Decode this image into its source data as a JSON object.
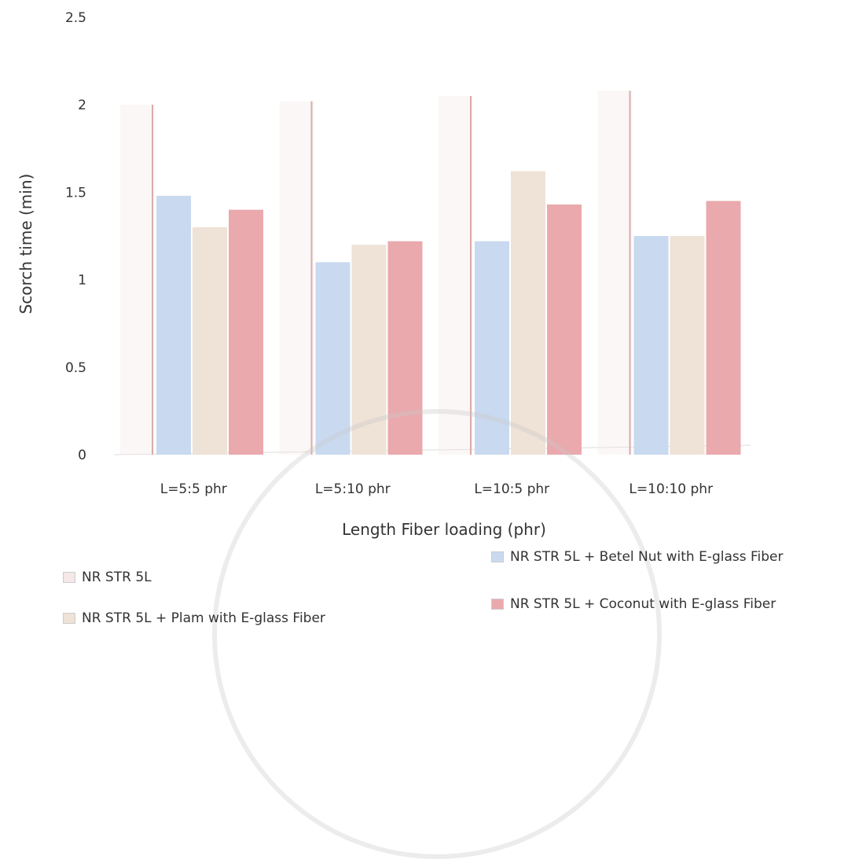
{
  "chart_data": {
    "type": "bar",
    "title": "",
    "xlabel": "Length Fiber loading (phr)",
    "ylabel": "Scorch time (min)",
    "ylim": [
      0,
      2.5
    ],
    "yticks": [
      "0",
      "0.5",
      "1",
      "1.5",
      "2",
      "2.5"
    ],
    "categories": [
      "L=5:5 phr",
      "L=5:10 phr",
      "L=10:5 phr",
      "L=10:10 phr"
    ],
    "series": [
      {
        "name": "NR STR 5L",
        "values": [
          2.0,
          2.02,
          2.05,
          2.08
        ],
        "color": "#f6e8e8"
      },
      {
        "name": "NR STR 5L + Betel Nut with E-glass Fiber",
        "values": [
          1.48,
          1.1,
          1.22,
          1.25
        ],
        "color": "#c9d9ef"
      },
      {
        "name": "NR STR 5L + Plam with E-glass Fiber",
        "values": [
          1.3,
          1.2,
          1.62,
          1.25
        ],
        "color": "#efe2d6"
      },
      {
        "name": "NR STR 5L + Coconut with E-glass Fiber",
        "values": [
          1.4,
          1.22,
          1.43,
          1.45
        ],
        "color": "#eaa9ad"
      }
    ],
    "grid": false,
    "legend_position": "bottom"
  }
}
